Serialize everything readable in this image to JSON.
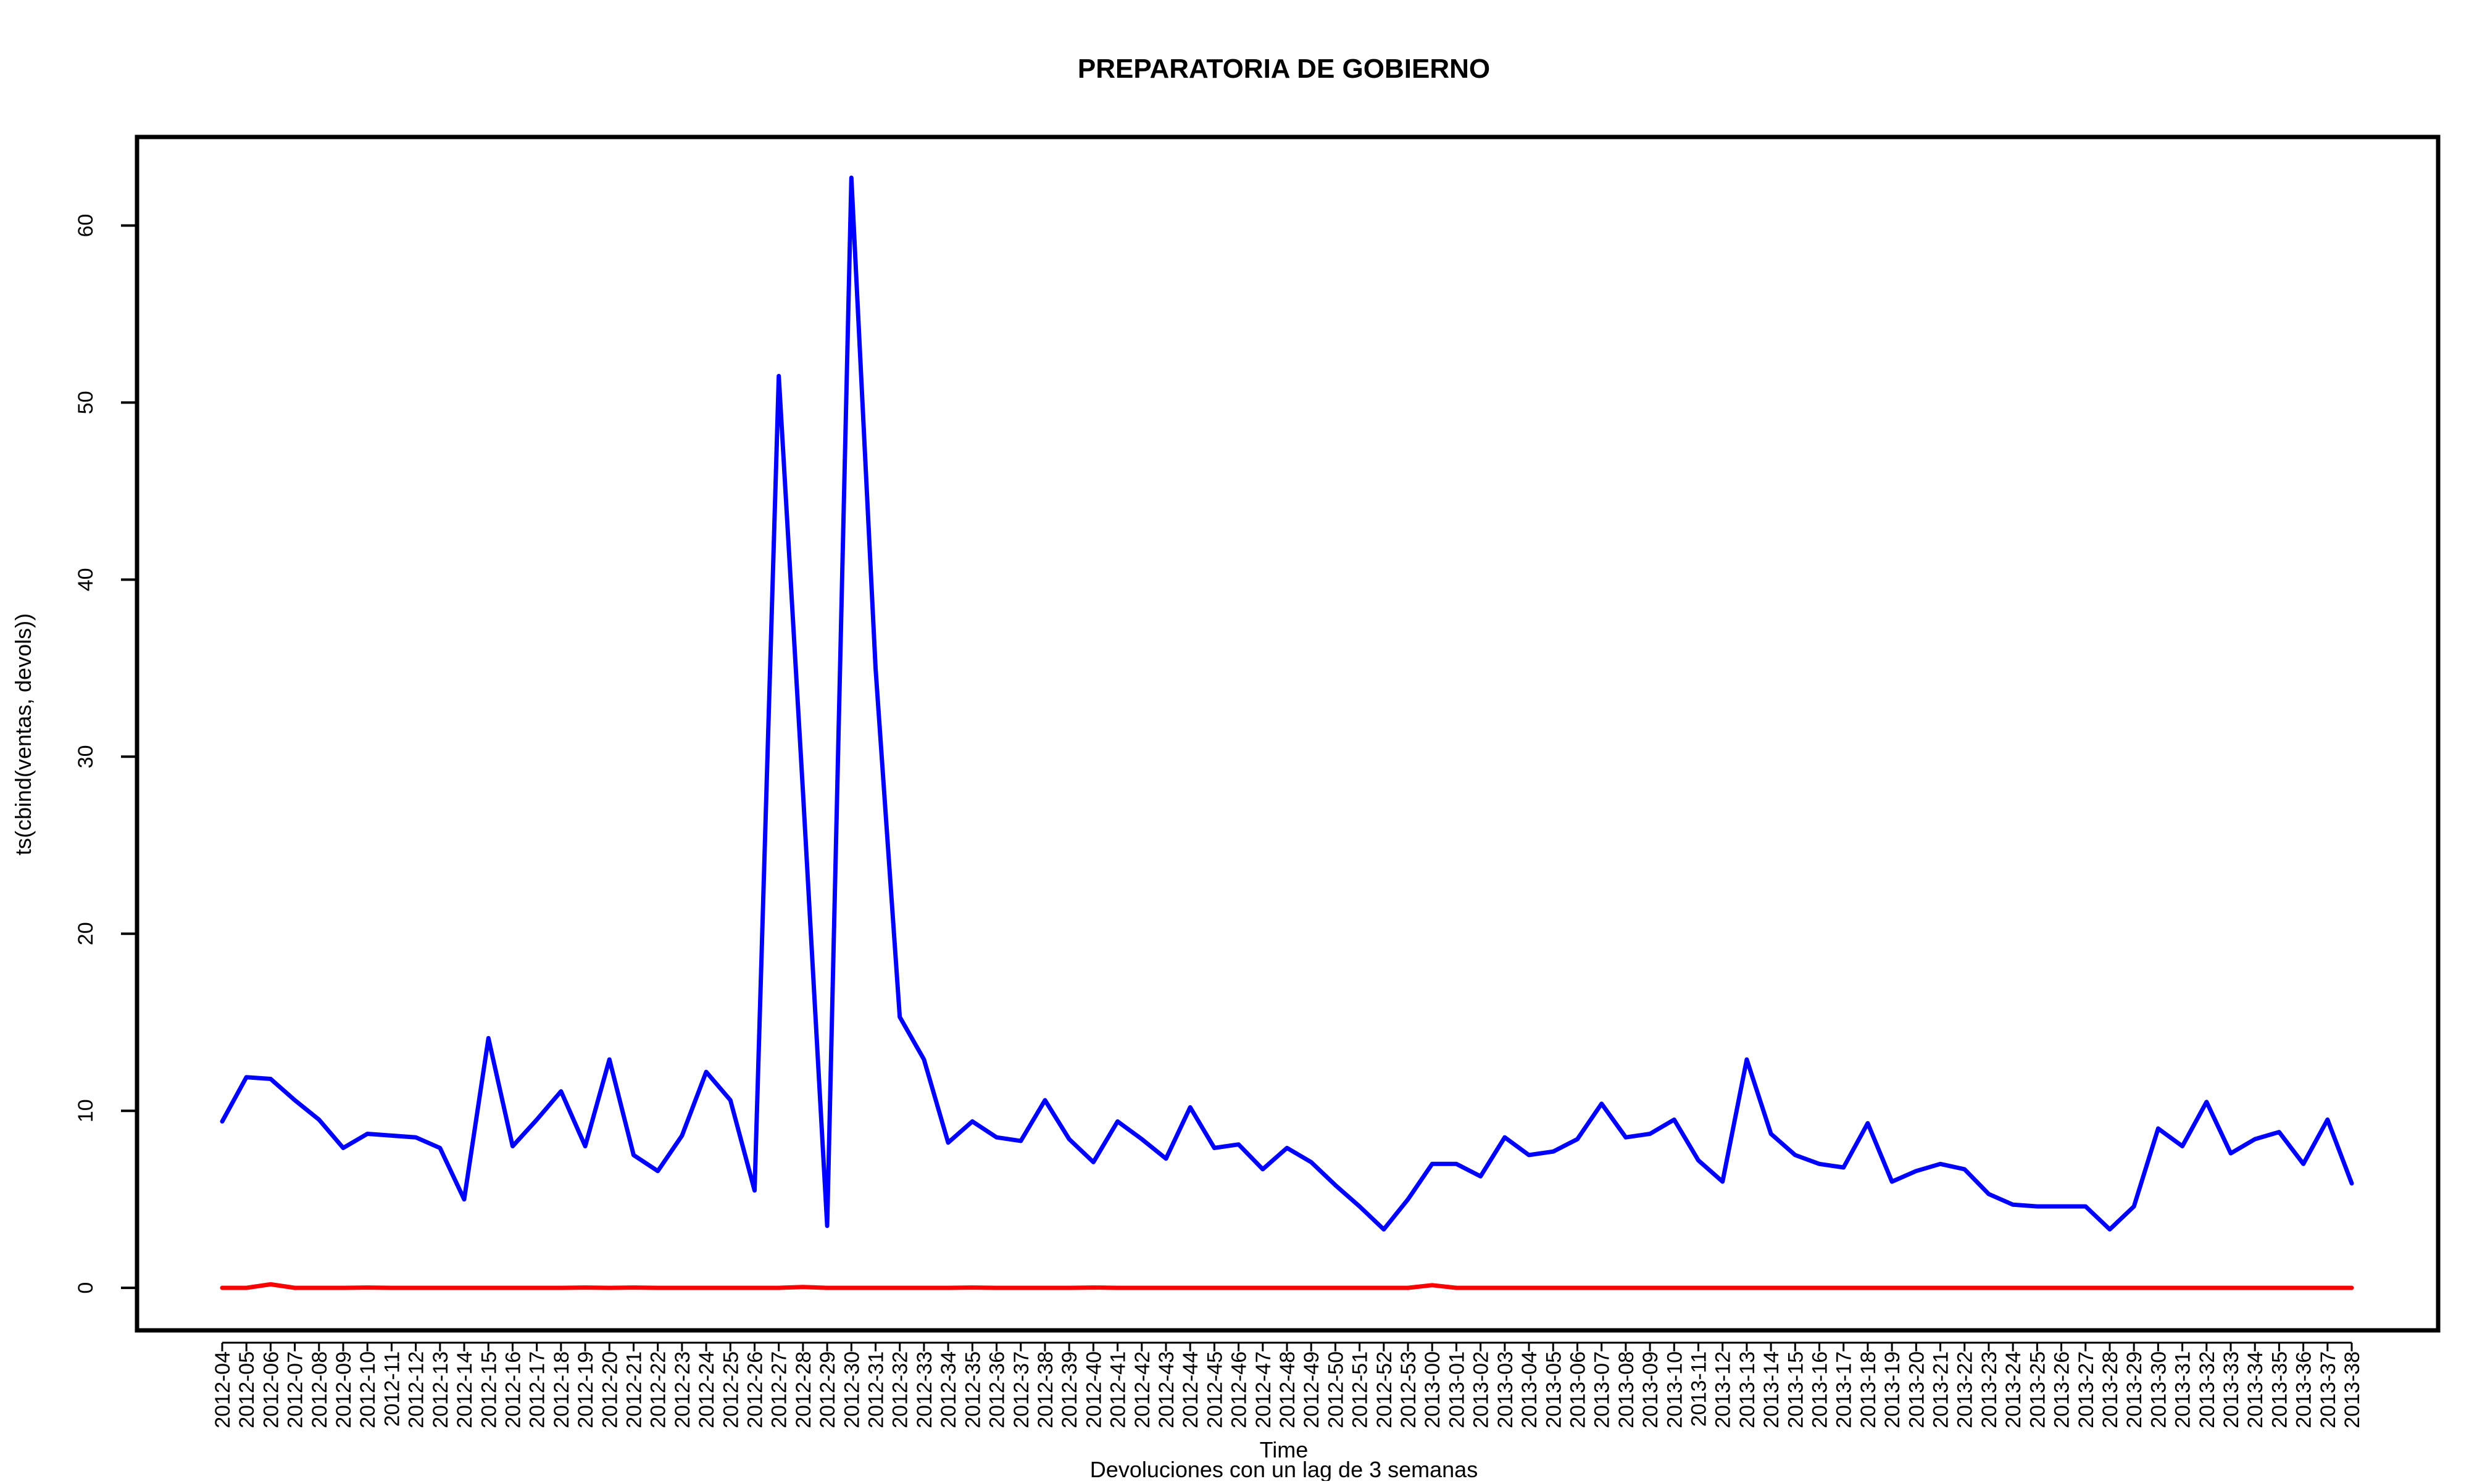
{
  "chart_data": {
    "type": "line",
    "title": "PREPARATORIA DE GOBIERNO",
    "xlabel": "Time",
    "ylabel": "ts(cbind(ventas, devols))",
    "caption": "Devoluciones con un lag de 3 semanas",
    "ylim": [
      -2.4,
      65
    ],
    "yticks": [
      0,
      10,
      20,
      30,
      40,
      50,
      60
    ],
    "grid": false,
    "legend": "none",
    "categories": [
      "2012-04",
      "2012-05",
      "2012-06",
      "2012-07",
      "2012-08",
      "2012-09",
      "2012-10",
      "2012-11",
      "2012-12",
      "2012-13",
      "2012-14",
      "2012-15",
      "2012-16",
      "2012-17",
      "2012-18",
      "2012-19",
      "2012-20",
      "2012-21",
      "2012-22",
      "2012-23",
      "2012-24",
      "2012-25",
      "2012-26",
      "2012-27",
      "2012-28",
      "2012-29",
      "2012-30",
      "2012-31",
      "2012-32",
      "2012-33",
      "2012-34",
      "2012-35",
      "2012-36",
      "2012-37",
      "2012-38",
      "2012-39",
      "2012-40",
      "2012-41",
      "2012-42",
      "2012-43",
      "2012-44",
      "2012-45",
      "2012-46",
      "2012-47",
      "2012-48",
      "2012-49",
      "2012-50",
      "2012-51",
      "2012-52",
      "2012-53",
      "2013-00",
      "2013-01",
      "2013-02",
      "2013-03",
      "2013-04",
      "2013-05",
      "2013-06",
      "2013-07",
      "2013-08",
      "2013-09",
      "2013-10",
      "2013-11",
      "2013-12",
      "2013-13",
      "2013-14",
      "2013-15",
      "2013-16",
      "2013-17",
      "2013-18",
      "2013-19",
      "2013-20",
      "2013-21",
      "2013-22",
      "2013-23",
      "2013-24",
      "2013-25",
      "2013-26",
      "2013-27",
      "2013-28",
      "2013-29",
      "2013-30",
      "2013-31",
      "2013-32",
      "2013-33",
      "2013-34",
      "2013-35",
      "2013-36",
      "2013-37",
      "2013-38"
    ],
    "series": [
      {
        "color": "#0000ff",
        "values": [
          9.4,
          11.9,
          11.8,
          10.6,
          9.5,
          7.9,
          8.7,
          8.6,
          8.5,
          7.9,
          5.0,
          14.1,
          8.0,
          9.5,
          11.1,
          8.0,
          12.9,
          7.5,
          6.6,
          8.6,
          12.2,
          10.6,
          5.5,
          51.5,
          28.0,
          3.5,
          62.7,
          35.0,
          15.3,
          12.9,
          8.2,
          9.4,
          8.5,
          8.3,
          10.6,
          8.4,
          7.1,
          9.4,
          8.4,
          7.3,
          10.2,
          7.9,
          8.1,
          6.7,
          7.9,
          7.1,
          5.8,
          4.6,
          3.3,
          5.0,
          7.0,
          7.0,
          6.3,
          8.5,
          7.5,
          7.7,
          8.4,
          10.4,
          8.5,
          8.7,
          9.5,
          7.2,
          6.0,
          12.9,
          8.7,
          7.5,
          7.0,
          6.8,
          9.3,
          6.0,
          6.6,
          7.0,
          6.7,
          5.3,
          4.7,
          4.6,
          4.6,
          4.6,
          3.3,
          4.6,
          9.0,
          8.0,
          10.5,
          7.6,
          8.4,
          8.8,
          7.0,
          9.5,
          5.9
        ]
      },
      {
        "color": "#ff0000",
        "values": [
          0.0,
          0.0,
          0.2,
          0.0,
          0.0,
          0.0,
          0.02,
          0.0,
          0.0,
          0.0,
          0.0,
          0.0,
          0.0,
          0.0,
          0.0,
          0.02,
          0.0,
          0.02,
          0.0,
          0.0,
          0.0,
          0.0,
          0.0,
          0.0,
          0.05,
          0.0,
          0.0,
          0.0,
          0.0,
          0.0,
          0.0,
          0.02,
          0.0,
          0.0,
          0.0,
          0.0,
          0.02,
          0.0,
          0.0,
          0.0,
          0.0,
          0.0,
          0.0,
          0.0,
          0.0,
          0.0,
          0.0,
          0.0,
          0.0,
          0.0,
          0.15,
          0.0,
          0.0,
          0.0,
          0.0,
          0.0,
          0.0,
          0.0,
          0.0,
          0.0,
          0.0,
          0.0,
          0.0,
          0.0,
          0.0,
          0.0,
          0.0,
          0.0,
          0.0,
          0.0,
          0.0,
          0.0,
          0.0,
          0.0,
          0.0,
          0.0,
          0.0,
          0.0,
          0.0,
          0.0,
          0.0,
          0.0,
          0.0,
          0.0,
          0.0,
          0.0,
          0.0,
          0.0,
          0.0
        ]
      }
    ]
  }
}
